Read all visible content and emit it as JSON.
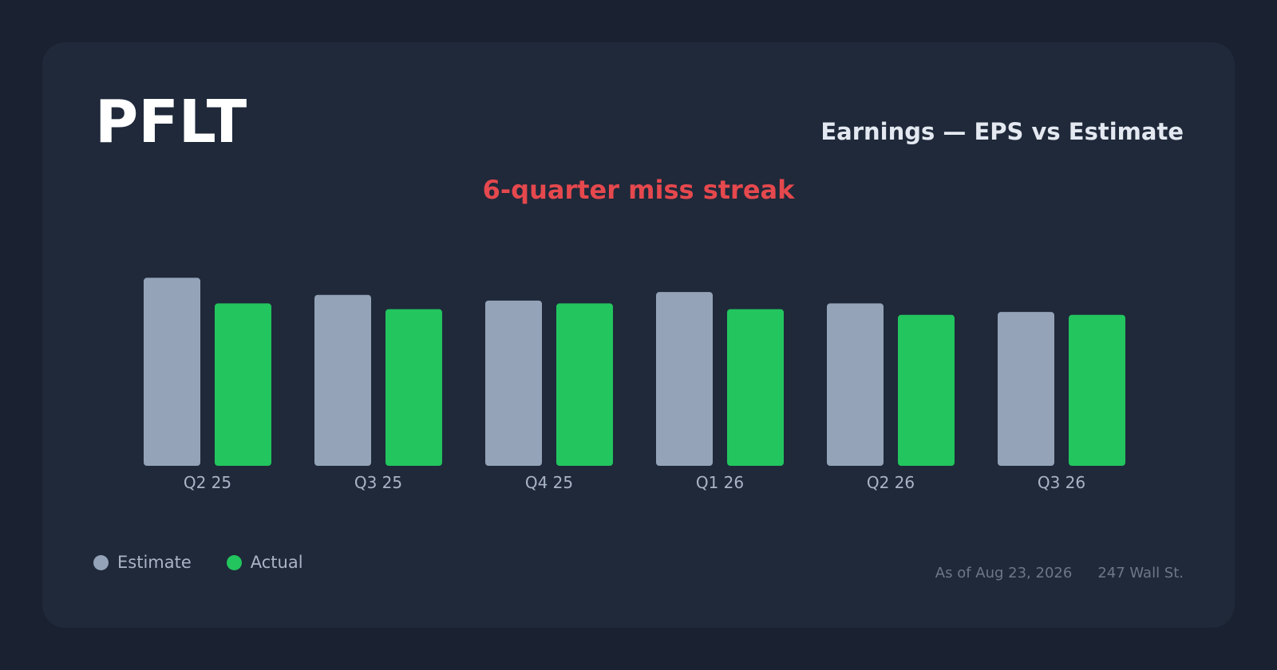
{
  "ticker": "PFLT",
  "chart_title": "Earnings — EPS vs Estimate",
  "streak": {
    "text": "6-quarter miss streak",
    "color": "#e5484d"
  },
  "colors": {
    "estimate": "#94a3b8",
    "actual": "#22c55e",
    "axis_label": "#a9b4c6"
  },
  "legend": {
    "estimate_label": "Estimate",
    "actual_label": "Actual"
  },
  "footer": {
    "as_of": "As of Aug 23, 2026",
    "source": "247 Wall St."
  },
  "chart_data": {
    "type": "bar",
    "categories": [
      "Q2 25",
      "Q3 25",
      "Q4 25",
      "Q1 26",
      "Q2 26",
      "Q3 26"
    ],
    "series": [
      {
        "name": "Estimate",
        "values": [
          0.33,
          0.3,
          0.29,
          0.305,
          0.285,
          0.27
        ]
      },
      {
        "name": "Actual",
        "values": [
          0.285,
          0.275,
          0.285,
          0.275,
          0.265,
          0.265
        ]
      }
    ],
    "ylim": [
      0,
      0.35
    ],
    "grid": false,
    "legend_position": "bottom-left"
  }
}
